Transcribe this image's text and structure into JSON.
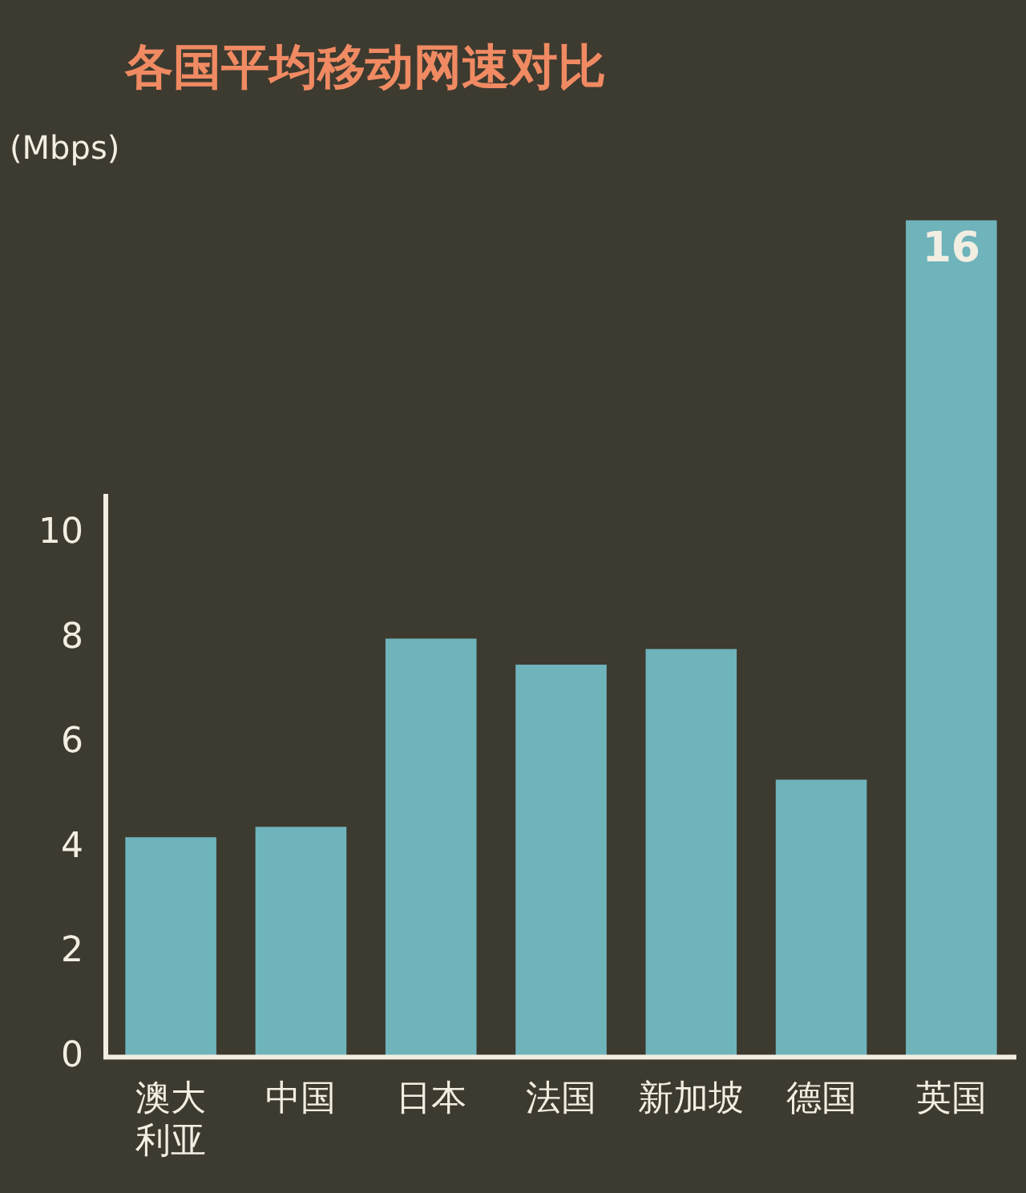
{
  "chart_data": {
    "type": "bar",
    "title": "各国平均移动网速对比",
    "ylabel": "(Mbps)",
    "categories": [
      "澳大利亚",
      "中国",
      "日本",
      "法国",
      "新加坡",
      "德国",
      "英国"
    ],
    "values": [
      4.2,
      4.4,
      8.0,
      7.5,
      7.8,
      5.3,
      16
    ],
    "value_labels": [
      null,
      null,
      null,
      null,
      null,
      null,
      "16"
    ],
    "color": "#6fb3bb",
    "ylim": [
      0,
      16
    ],
    "yticks": [
      0,
      2,
      4,
      6,
      8,
      10
    ],
    "grid": false,
    "legend": false
  }
}
